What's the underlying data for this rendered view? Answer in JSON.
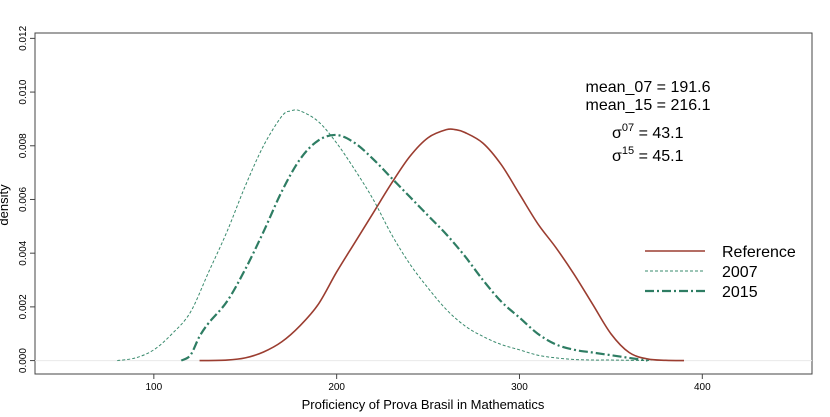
{
  "chart_data": {
    "type": "line",
    "title": "",
    "xlabel": "Proficiency of Prova Brasil in Mathematics",
    "ylabel": "density",
    "xlim": [
      35,
      460
    ],
    "ylim": [
      -0.0005,
      0.0122
    ],
    "xticks": [
      "100",
      "200",
      "300",
      "400"
    ],
    "yticks": [
      "0.000",
      "0.002",
      "0.004",
      "0.006",
      "0.008",
      "0.010",
      "0.012"
    ],
    "grid": false,
    "legend_position": "right",
    "annotations": {
      "mean07": "mean_07 = 191.6",
      "mean15": "mean_15 = 216.1",
      "sigma07_base": "σ",
      "sigma07_sup": "07",
      "sigma07_val": " = 43.1",
      "sigma15_base": "σ",
      "sigma15_sup": "15",
      "sigma15_val": " = 45.1"
    },
    "series": [
      {
        "name": "Reference",
        "color": "#9b3d30",
        "dash": "solid",
        "x": [
          125,
          140,
          150,
          160,
          170,
          180,
          190,
          200,
          210,
          220,
          230,
          240,
          250,
          260,
          265,
          270,
          280,
          290,
          300,
          310,
          320,
          330,
          340,
          350,
          360,
          370,
          380,
          390
        ],
        "y": [
          0.0,
          2e-05,
          0.0001,
          0.00032,
          0.0007,
          0.0013,
          0.0021,
          0.0033,
          0.0044,
          0.0055,
          0.0066,
          0.0076,
          0.0083,
          0.0086,
          0.0086,
          0.0085,
          0.0081,
          0.0073,
          0.0062,
          0.0051,
          0.0042,
          0.0032,
          0.0021,
          0.001,
          0.0003,
          6e-05,
          1e-05,
          0.0
        ]
      },
      {
        "name": "2007",
        "color": "#3a8b6e",
        "dash": "short",
        "x": [
          80,
          90,
          100,
          110,
          120,
          130,
          140,
          150,
          160,
          170,
          175,
          180,
          190,
          200,
          210,
          220,
          230,
          240,
          250,
          260,
          270,
          280,
          290,
          300,
          310,
          320,
          330,
          340,
          350,
          360,
          372
        ],
        "y": [
          0.0,
          0.0001,
          0.0004,
          0.001,
          0.0018,
          0.0033,
          0.0048,
          0.0065,
          0.008,
          0.0091,
          0.0093,
          0.0093,
          0.0089,
          0.0081,
          0.0071,
          0.006,
          0.0047,
          0.0036,
          0.0027,
          0.0019,
          0.0013,
          0.0009,
          0.0006,
          0.0004,
          0.0002,
          0.0001,
          4e-05,
          2e-05,
          2e-05,
          1e-05,
          0.0
        ]
      },
      {
        "name": "2015",
        "color": "#2e7d63",
        "dash": "dashdot",
        "x": [
          115,
          120,
          125,
          130,
          140,
          150,
          160,
          170,
          180,
          190,
          200,
          210,
          220,
          230,
          240,
          250,
          260,
          270,
          280,
          290,
          300,
          310,
          320,
          330,
          340,
          350,
          360,
          370
        ],
        "y": [
          0.0,
          0.0002,
          0.0009,
          0.0014,
          0.0022,
          0.0034,
          0.0048,
          0.0063,
          0.0075,
          0.0082,
          0.0084,
          0.0081,
          0.0075,
          0.0068,
          0.0061,
          0.0054,
          0.0047,
          0.0039,
          0.003,
          0.0022,
          0.0016,
          0.001,
          0.0006,
          0.0004,
          0.0003,
          0.0002,
          0.0001,
          0.0
        ]
      }
    ]
  }
}
